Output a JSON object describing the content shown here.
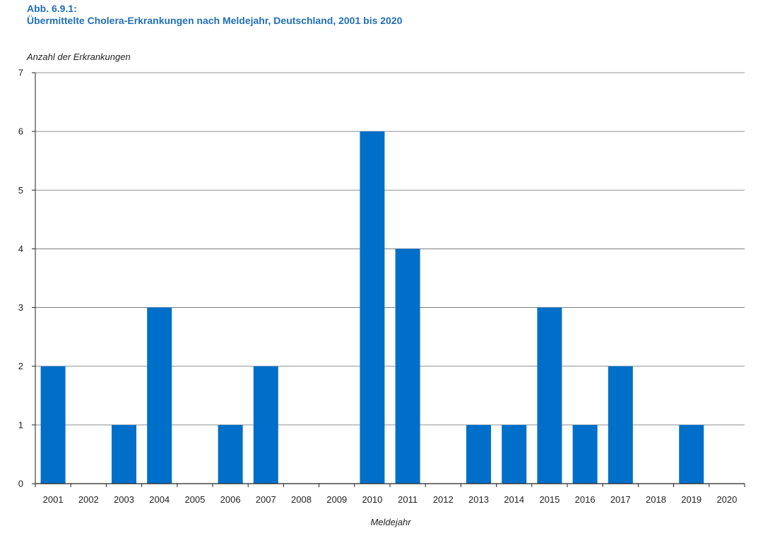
{
  "header": {
    "fig_number": "Abb. 6.9.1:",
    "title": "Übermittelte Cholera-Erkrankungen nach Meldejahr, Deutschland, 2001 bis 2020"
  },
  "chart_data": {
    "type": "bar",
    "title": "Übermittelte Cholera-Erkrankungen nach Meldejahr, Deutschland, 2001 bis 2020",
    "ylabel": "Anzahl der Erkrankungen",
    "xlabel": "Meldejahr",
    "ylim": [
      0,
      7
    ],
    "yticks": [
      "0",
      "1",
      "2",
      "3",
      "4",
      "5",
      "6",
      "7"
    ],
    "categories": [
      "2001",
      "2002",
      "2003",
      "2004",
      "2005",
      "2006",
      "2007",
      "2008",
      "2009",
      "2010",
      "2011",
      "2012",
      "2013",
      "2014",
      "2015",
      "2016",
      "2017",
      "2018",
      "2019",
      "2020"
    ],
    "values": [
      2,
      0,
      1,
      3,
      0,
      1,
      2,
      0,
      0,
      6,
      4,
      0,
      1,
      1,
      3,
      1,
      2,
      0,
      1,
      0
    ],
    "grid": true,
    "bar_color": "#006fc9"
  }
}
